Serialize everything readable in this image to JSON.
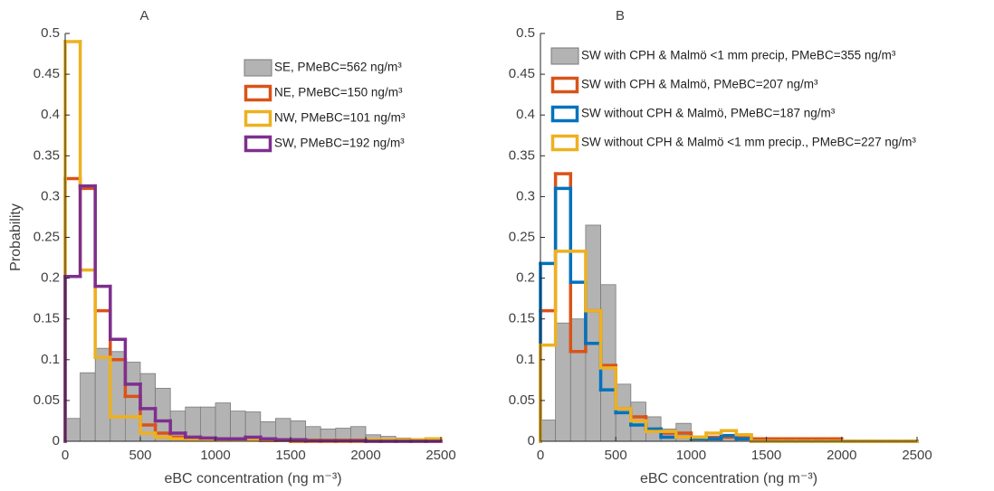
{
  "chart_data": [
    {
      "type": "histogram",
      "panel": "A",
      "ylabel": "Probability",
      "xlabel": "eBC concentration (ng m⁻³)",
      "bins": [
        0,
        100,
        200,
        300,
        400,
        500,
        600,
        700,
        800,
        900,
        1000,
        1100,
        1200,
        1300,
        1400,
        1500,
        1600,
        1700,
        1800,
        1900,
        2000,
        2100,
        2200,
        2300,
        2400,
        2500
      ],
      "xlim": [
        0,
        2500
      ],
      "xticks": [
        0,
        500,
        1000,
        1500,
        2000,
        2500
      ],
      "ylim": [
        0,
        0.5
      ],
      "yticks": [
        0,
        0.05,
        0.1,
        0.15,
        0.2,
        0.25,
        0.3,
        0.35,
        0.4,
        0.45,
        0.5
      ],
      "series": [
        {
          "name": "SE, PMeBC=562 ng/m³",
          "color": "#b3b3b3",
          "style": "bar",
          "values": [
            0.028,
            0.084,
            0.114,
            0.11,
            0.097,
            0.083,
            0.065,
            0.037,
            0.042,
            0.042,
            0.047,
            0.037,
            0.036,
            0.024,
            0.028,
            0.025,
            0.018,
            0.015,
            0.016,
            0.018,
            0.008,
            0.006,
            0.004,
            0.003,
            0.004
          ]
        },
        {
          "name": "NE, PMeBC=150 ng/m³",
          "color": "#d95319",
          "style": "step",
          "values": [
            0.322,
            0.31,
            0.16,
            0.1,
            0.055,
            0.02,
            0.01,
            0.005,
            0.005,
            0.003,
            0.002,
            0.002,
            0.002,
            0.001,
            0.001,
            0,
            0,
            0,
            0,
            0,
            0,
            0,
            0,
            0,
            0
          ]
        },
        {
          "name": "NW, PMeBC=101 ng/m³",
          "color": "#edb120",
          "style": "step",
          "values": [
            0.49,
            0.21,
            0.103,
            0.03,
            0.03,
            0.01,
            0.005,
            0.003,
            0.002,
            0.002,
            0.002,
            0.002,
            0.002,
            0.002,
            0.002,
            0.002,
            0.002,
            0.002,
            0.002,
            0.002,
            0.002,
            0.002,
            0.002,
            0.002,
            0.003
          ]
        },
        {
          "name": "SW, PMeBC=192 ng/m³",
          "color": "#7e2f8e",
          "style": "step",
          "values": [
            0.202,
            0.313,
            0.19,
            0.125,
            0.07,
            0.04,
            0.025,
            0.01,
            0.005,
            0.004,
            0.003,
            0.003,
            0.005,
            0.003,
            0.002,
            0.002,
            0.001,
            0.001,
            0.001,
            0.001,
            0,
            0,
            0,
            0,
            0
          ]
        }
      ]
    },
    {
      "type": "histogram",
      "panel": "B",
      "xlabel": "eBC concentration (ng m⁻³)",
      "bins": [
        0,
        100,
        200,
        300,
        400,
        500,
        600,
        700,
        800,
        900,
        1000,
        1100,
        1200,
        1300,
        1400,
        1500,
        1600,
        1700,
        1800,
        1900,
        2000,
        2100,
        2200,
        2300,
        2400,
        2500
      ],
      "xlim": [
        0,
        2500
      ],
      "xticks": [
        0,
        500,
        1000,
        1500,
        2000,
        2500
      ],
      "ylim": [
        0,
        0.5
      ],
      "yticks": [
        0,
        0.05,
        0.1,
        0.15,
        0.2,
        0.25,
        0.3,
        0.35,
        0.4,
        0.45,
        0.5
      ],
      "series": [
        {
          "name": "SW with CPH & Malmö <1 mm precip, PMeBC=355 ng/m³",
          "color": "#b3b3b3",
          "style": "bar",
          "values": [
            0.026,
            0.145,
            0.15,
            0.265,
            0.192,
            0.07,
            0.048,
            0.03,
            0.015,
            0.022,
            0.003,
            0.003,
            0.007,
            0.008,
            0,
            0,
            0,
            0,
            0,
            0,
            0,
            0,
            0,
            0,
            0
          ]
        },
        {
          "name": "SW with CPH & Malmö, PMeBC=207 ng/m³",
          "color": "#d95319",
          "style": "step",
          "values": [
            0.16,
            0.328,
            0.11,
            0.16,
            0.093,
            0.04,
            0.03,
            0.015,
            0.01,
            0.01,
            0.005,
            0.005,
            0.005,
            0.005,
            0.003,
            0.003,
            0.003,
            0.003,
            0.003,
            0.003,
            0,
            0,
            0,
            0,
            0
          ]
        },
        {
          "name": "SW without CPH & Malmö, PMeBC=187 ng/m³",
          "color": "#0072bd",
          "style": "step",
          "values": [
            0.218,
            0.31,
            0.195,
            0.12,
            0.063,
            0.035,
            0.02,
            0.015,
            0.005,
            0.005,
            0.003,
            0.003,
            0.007,
            0.003,
            0,
            0,
            0,
            0,
            0,
            0,
            0,
            0,
            0,
            0,
            0
          ]
        },
        {
          "name": "SW without CPH & Malmö <1 mm precip., PMeBC=227 ng/m³",
          "color": "#edb120",
          "style": "step",
          "values": [
            0.118,
            0.233,
            0.233,
            0.16,
            0.09,
            0.04,
            0.025,
            0.012,
            0.012,
            0.005,
            0.005,
            0.01,
            0.013,
            0.008,
            0,
            0,
            0,
            0,
            0,
            0,
            0,
            0,
            0,
            0,
            0
          ]
        }
      ]
    }
  ]
}
